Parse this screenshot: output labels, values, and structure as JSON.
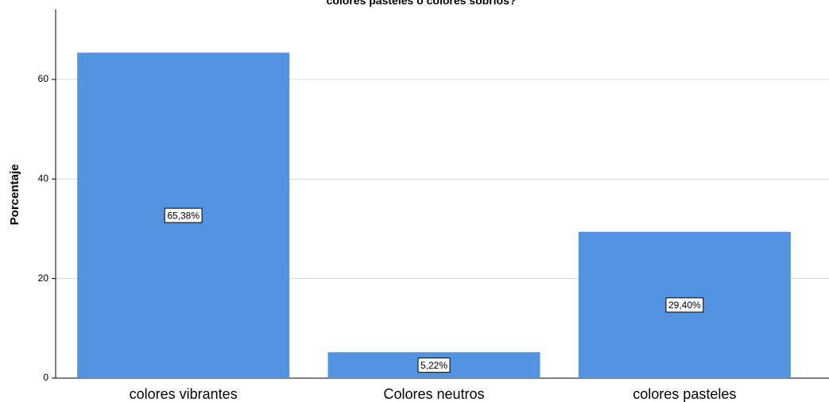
{
  "chart_data": {
    "type": "bar",
    "title": "colores pasteles o colores sobrios?",
    "xlabel": "",
    "ylabel": "Porcentaje",
    "categories": [
      "colores  vibrantes",
      "Colores neutros",
      "colores pasteles"
    ],
    "values": [
      65.38,
      5.22,
      29.4
    ],
    "data_labels": [
      "65,38%",
      "5,22%",
      "29,40%"
    ],
    "ylim": [
      0,
      70
    ],
    "yticks": [
      0,
      20,
      40,
      60
    ],
    "grid": true,
    "bar_color": "#5294e2",
    "gridline_color": "#d9d9d9"
  }
}
